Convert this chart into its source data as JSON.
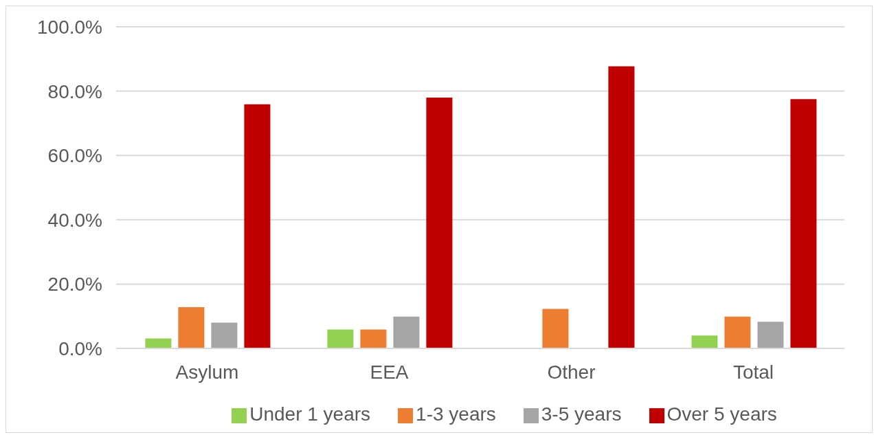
{
  "chart_data": {
    "type": "bar",
    "categories": [
      "Asylum",
      "EEA",
      "Other",
      "Total"
    ],
    "series": [
      {
        "name": "Under 1 years",
        "color": "#92d050",
        "values": [
          3.1,
          5.9,
          0,
          4.0
        ]
      },
      {
        "name": "1-3 years",
        "color": "#ed7d31",
        "values": [
          12.8,
          5.9,
          12.3,
          9.9
        ]
      },
      {
        "name": "3-5 years",
        "color": "#a5a5a5",
        "values": [
          8.0,
          9.9,
          0,
          8.3
        ]
      },
      {
        "name": "Over 5 years",
        "color": "#c00000",
        "values": [
          75.9,
          78.0,
          87.7,
          77.5
        ]
      }
    ],
    "ylim": [
      0,
      100
    ],
    "yticks": [
      {
        "value": 0,
        "label": "0.0%"
      },
      {
        "value": 20,
        "label": "20.0%"
      },
      {
        "value": 40,
        "label": "40.0%"
      },
      {
        "value": 60,
        "label": "60.0%"
      },
      {
        "value": 80,
        "label": "80.0%"
      },
      {
        "value": 100,
        "label": "100.0%"
      }
    ],
    "grid": "y",
    "legend": "bottom"
  }
}
